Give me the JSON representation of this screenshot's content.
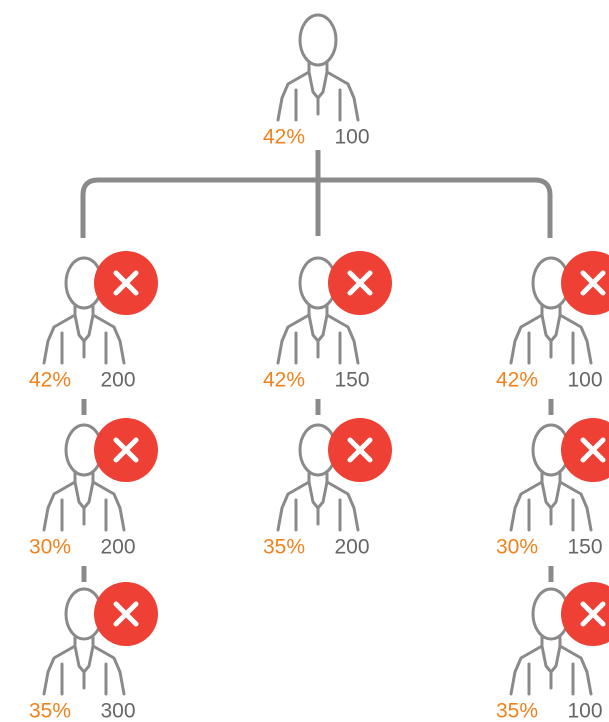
{
  "root": {
    "percent": "42%",
    "value": "100"
  },
  "columns": [
    [
      {
        "percent": "42%",
        "value": "200"
      },
      {
        "percent": "30%",
        "value": "200"
      },
      {
        "percent": "35%",
        "value": "300"
      }
    ],
    [
      {
        "percent": "42%",
        "value": "150"
      },
      {
        "percent": "35%",
        "value": "200"
      }
    ],
    [
      {
        "percent": "42%",
        "value": "100"
      },
      {
        "percent": "30%",
        "value": "150"
      },
      {
        "percent": "35%",
        "value": "100"
      }
    ]
  ]
}
